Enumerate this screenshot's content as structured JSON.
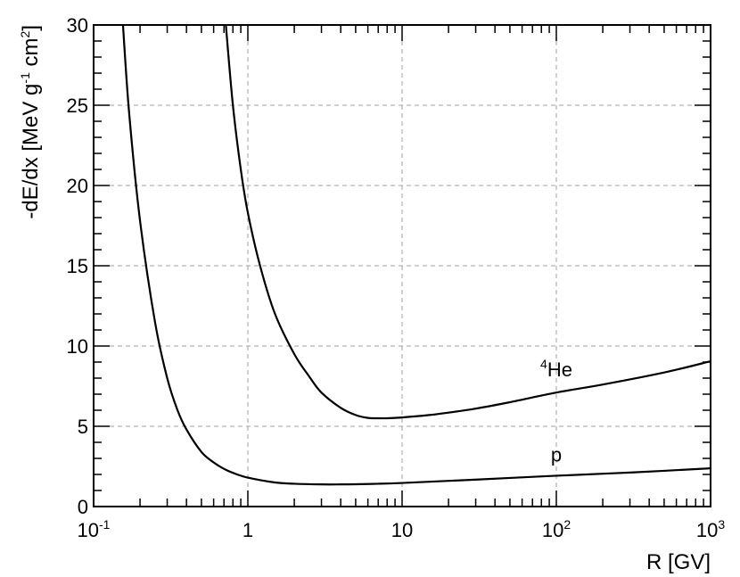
{
  "chart_data": {
    "type": "line",
    "xscale": "log",
    "xlim": [
      0.1,
      1000
    ],
    "ylim": [
      0,
      30
    ],
    "grid": true,
    "xlabel": "R [GV]",
    "ylabel": {
      "parts": [
        {
          "text": "-dE/dx [MeV g",
          "sup": false
        },
        {
          "text": "-1",
          "sup": true
        },
        {
          "text": " cm",
          "sup": false
        },
        {
          "text": "2",
          "sup": true
        },
        {
          "text": "]",
          "sup": false
        }
      ]
    },
    "x_ticks": [
      {
        "value": 0.1,
        "base": "10",
        "exp": "-1"
      },
      {
        "value": 1,
        "base": "1",
        "exp": ""
      },
      {
        "value": 10,
        "base": "10",
        "exp": ""
      },
      {
        "value": 100,
        "base": "10",
        "exp": "2"
      },
      {
        "value": 1000,
        "base": "10",
        "exp": "3"
      }
    ],
    "y_ticks": [
      {
        "value": 0,
        "label": "0"
      },
      {
        "value": 5,
        "label": "5"
      },
      {
        "value": 10,
        "label": "10"
      },
      {
        "value": 15,
        "label": "15"
      },
      {
        "value": 20,
        "label": "20"
      },
      {
        "value": 25,
        "label": "25"
      },
      {
        "value": 30,
        "label": "30"
      }
    ],
    "series": [
      {
        "label_sup": "",
        "label": "p",
        "label_at": {
          "x": 100,
          "y": 2.8
        },
        "x": [
          0.155,
          0.17,
          0.2,
          0.25,
          0.3,
          0.35,
          0.4,
          0.5,
          0.6,
          0.7,
          0.8,
          1,
          1.5,
          2,
          3,
          4,
          5,
          7,
          10,
          20,
          50,
          100,
          300,
          1000
        ],
        "y": [
          30,
          24.5,
          17.8,
          11.5,
          8.0,
          6.0,
          4.8,
          3.4,
          2.75,
          2.35,
          2.1,
          1.8,
          1.5,
          1.42,
          1.38,
          1.38,
          1.39,
          1.42,
          1.47,
          1.6,
          1.78,
          1.92,
          2.12,
          2.38
        ]
      },
      {
        "label_sup": "4",
        "label": "He",
        "label_at": {
          "x": 100,
          "y": 8.1
        },
        "x": [
          0.72,
          0.8,
          0.9,
          1,
          1.2,
          1.5,
          2,
          2.5,
          3,
          4,
          5,
          6,
          7,
          8,
          10,
          15,
          20,
          30,
          50,
          100,
          200,
          500,
          1000
        ],
        "y": [
          30,
          25.0,
          21.0,
          18.3,
          15.0,
          12.0,
          9.5,
          8.1,
          7.1,
          6.15,
          5.7,
          5.52,
          5.5,
          5.5,
          5.55,
          5.7,
          5.85,
          6.1,
          6.5,
          7.1,
          7.6,
          8.35,
          9.05
        ]
      }
    ]
  }
}
